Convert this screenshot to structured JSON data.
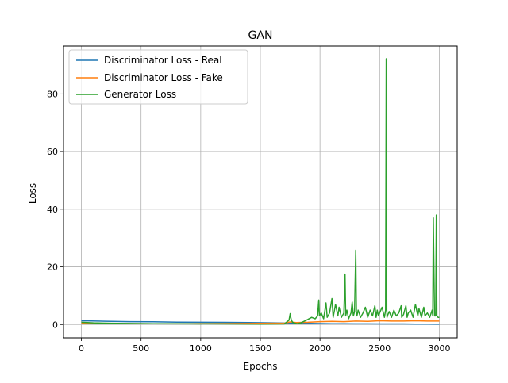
{
  "chart_data": {
    "type": "line",
    "title": "GAN",
    "xlabel": "Epochs",
    "ylabel": "Loss",
    "xlim": [
      -150,
      3150
    ],
    "ylim": [
      -4.6,
      96.6
    ],
    "xticks": [
      0,
      500,
      1000,
      1500,
      2000,
      2500,
      3000
    ],
    "yticks": [
      0,
      20,
      40,
      60,
      80
    ],
    "grid": true,
    "legend_position": "top-left",
    "series": [
      {
        "name": "Discriminator Loss - Real",
        "color": "#1f77b4",
        "x": [
          0,
          200,
          400,
          600,
          800,
          1000,
          1200,
          1400,
          1600,
          1750,
          1800,
          1900,
          2000,
          2100,
          2200,
          2300,
          2400,
          2500,
          2600,
          2700,
          2800,
          2900,
          3000
        ],
        "values": [
          1.3,
          1.15,
          1.0,
          0.95,
          0.85,
          0.8,
          0.75,
          0.7,
          0.6,
          0.5,
          0.45,
          0.4,
          0.35,
          0.3,
          0.3,
          0.25,
          0.25,
          0.2,
          0.2,
          0.2,
          0.15,
          0.15,
          0.1
        ]
      },
      {
        "name": "Discriminator Loss - Fake",
        "color": "#ff7f0e",
        "x": [
          0,
          300,
          600,
          900,
          1200,
          1500,
          1700,
          1750,
          1800,
          1900,
          2000,
          2100,
          2200,
          2300,
          2400,
          2500,
          2600,
          2700,
          2800,
          2900,
          3000
        ],
        "values": [
          0.4,
          0.35,
          0.3,
          0.3,
          0.35,
          0.4,
          0.5,
          0.9,
          0.7,
          0.8,
          1.0,
          1.1,
          1.0,
          1.2,
          1.1,
          1.3,
          1.2,
          1.2,
          1.3,
          1.2,
          1.2
        ]
      },
      {
        "name": "Generator Loss",
        "color": "#2ca02c",
        "x": [
          0,
          100,
          300,
          600,
          900,
          1200,
          1500,
          1700,
          1740,
          1750,
          1755,
          1760,
          1770,
          1790,
          1810,
          1840,
          1870,
          1900,
          1930,
          1960,
          1980,
          1990,
          1995,
          2010,
          2030,
          2050,
          2060,
          2080,
          2100,
          2110,
          2130,
          2150,
          2160,
          2180,
          2200,
          2210,
          2215,
          2225,
          2240,
          2260,
          2270,
          2280,
          2290,
          2300,
          2305,
          2310,
          2320,
          2340,
          2360,
          2380,
          2400,
          2420,
          2440,
          2460,
          2470,
          2480,
          2490,
          2500,
          2520,
          2540,
          2550,
          2555,
          2560,
          2562,
          2565,
          2580,
          2600,
          2620,
          2640,
          2660,
          2680,
          2685,
          2700,
          2720,
          2730,
          2740,
          2760,
          2780,
          2800,
          2820,
          2830,
          2850,
          2870,
          2880,
          2900,
          2920,
          2940,
          2945,
          2950,
          2960,
          2970,
          2975,
          2980,
          2990,
          3000
        ],
        "values": [
          0.8,
          0.6,
          0.4,
          0.3,
          0.25,
          0.2,
          0.15,
          0.2,
          1.5,
          3.8,
          2.5,
          1.5,
          0.8,
          0.5,
          0.3,
          0.6,
          1.2,
          1.8,
          2.5,
          2.0,
          3.0,
          8.5,
          3.0,
          4.0,
          2.0,
          7.5,
          2.5,
          4.0,
          9.0,
          2.5,
          7.0,
          3.0,
          6.0,
          2.5,
          4.0,
          17.5,
          3.0,
          5.0,
          2.0,
          4.0,
          7.8,
          3.0,
          4.5,
          25.8,
          4.0,
          3.0,
          5.0,
          2.5,
          4.0,
          6.0,
          2.5,
          5.0,
          3.0,
          6.5,
          2.5,
          5.0,
          3.0,
          4.0,
          6.0,
          2.5,
          5.0,
          92.2,
          5.0,
          2.5,
          3.0,
          4.5,
          2.5,
          5.0,
          3.0,
          4.0,
          6.5,
          2.5,
          3.5,
          6.5,
          2.5,
          4.0,
          5.0,
          2.5,
          7.0,
          3.0,
          5.5,
          2.5,
          6.0,
          3.0,
          4.0,
          2.5,
          5.0,
          3.0,
          37.0,
          3.0,
          3.0,
          38.0,
          3.0,
          2.5,
          2.5
        ]
      }
    ]
  }
}
